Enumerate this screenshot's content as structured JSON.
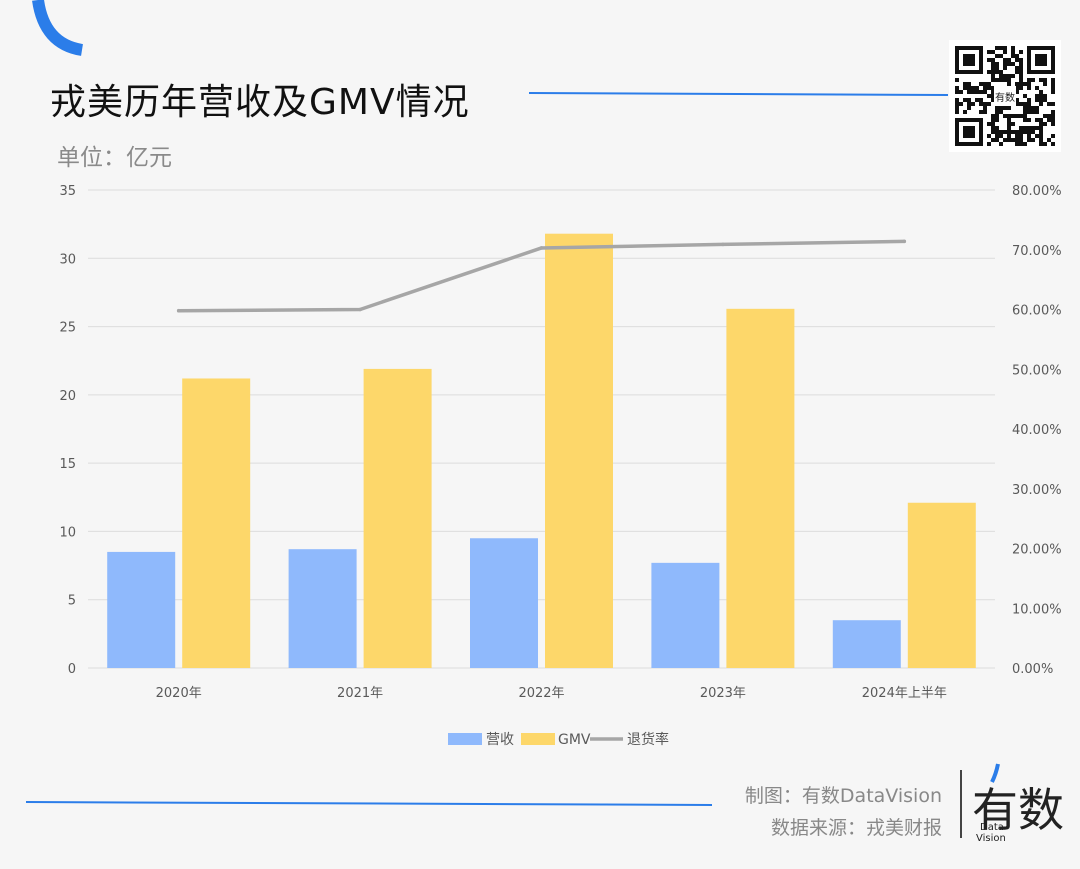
{
  "title": "戎美历年营收及GMV情况",
  "unit": "单位：亿元",
  "colors": {
    "revenue": "#8fb9fc",
    "gmv": "#fdd76a",
    "return_rate": "#a6a6a6",
    "accent": "#2b7de9",
    "grid": "#dcdcdc",
    "axis_text": "#595959"
  },
  "footer": {
    "made_by": "制图：有数DataVision",
    "source": "数据来源：戎美财报",
    "logo_text": "有数",
    "logo_sub_1": "Data",
    "logo_sub_2": "Vision"
  },
  "qr": {
    "center_text": "有数"
  },
  "chart_data": {
    "type": "bar",
    "categories": [
      "2020年",
      "2021年",
      "2022年",
      "2023年",
      "2024年上半年"
    ],
    "series": [
      {
        "name": "营收",
        "type": "bar",
        "values": [
          8.5,
          8.7,
          9.5,
          7.7,
          3.5
        ]
      },
      {
        "name": "GMV",
        "type": "bar",
        "values": [
          21.2,
          21.9,
          31.8,
          26.3,
          12.1
        ]
      },
      {
        "name": "退货率",
        "type": "line",
        "axis": "right",
        "values": [
          59.8,
          60.0,
          70.3,
          70.9,
          71.4
        ]
      }
    ],
    "y_left": {
      "min": 0,
      "max": 35,
      "ticks": [
        "0",
        "5",
        "10",
        "15",
        "20",
        "25",
        "30",
        "35"
      ]
    },
    "y_right": {
      "min": 0,
      "max": 80,
      "ticks": [
        "0.00%",
        "10.00%",
        "20.00%",
        "30.00%",
        "40.00%",
        "50.00%",
        "60.00%",
        "70.00%",
        "80.00%"
      ]
    },
    "grid": true,
    "legend_position": "bottom"
  }
}
